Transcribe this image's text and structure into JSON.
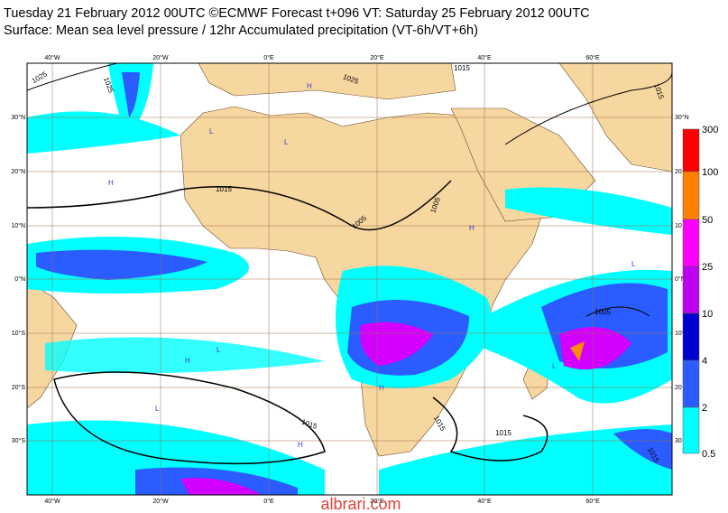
{
  "header": {
    "title": "Tuesday 21 February 2012 00UTC ©ECMWF Forecast t+096 VT: Saturday 25 February 2012 00UTC",
    "subtitle": "Surface: Mean sea level pressure / 12hr Accumulated precipitation (VT-6h/VT+6h)"
  },
  "map": {
    "lon_labels": [
      "40°W",
      "20°W",
      "0°E",
      "20°E",
      "40°E",
      "60°E"
    ],
    "lat_labels_left": [
      "30°N",
      "20°N",
      "10°N",
      "0°N",
      "10°S",
      "20°S",
      "30°S"
    ],
    "lat_labels_right": [
      "30°N",
      "20",
      "10",
      "0°N",
      "10°S",
      "20",
      "30"
    ],
    "contour_labels": [
      "1025",
      "1025",
      "1015",
      "1025",
      "1015",
      "1015",
      "1005",
      "1005",
      "1005",
      "1015",
      "1015",
      "1015",
      "1015"
    ],
    "pressure_marks": [
      "H",
      "L",
      "H",
      "L",
      "H",
      "L",
      "H",
      "L",
      "H",
      "L",
      "H",
      "L"
    ]
  },
  "colorbar": {
    "labels": [
      "300",
      "100",
      "50",
      "25",
      "10",
      "4",
      "2",
      "0.5"
    ]
  },
  "watermark": "albrari.com"
}
